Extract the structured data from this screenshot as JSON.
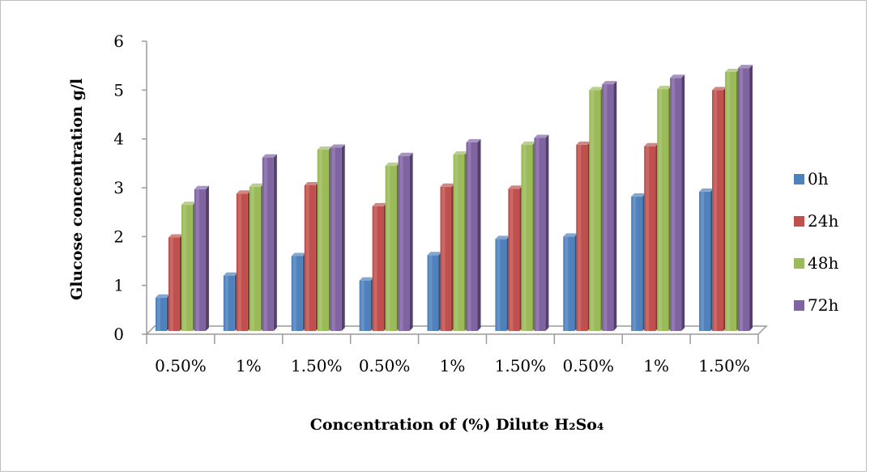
{
  "chart_data": {
    "type": "bar",
    "categories": [
      "0.50%",
      "1%",
      "1.50%",
      "0.50%",
      "1%",
      "1.50%",
      "0.50%",
      "1%",
      "1.50%"
    ],
    "series": [
      {
        "name": "0h",
        "color": "#4f81bd",
        "values": [
          0.75,
          1.2,
          1.6,
          1.1,
          1.62,
          1.95,
          2.0,
          2.82,
          2.92
        ]
      },
      {
        "name": "24h",
        "color": "#c0504d",
        "values": [
          1.98,
          2.88,
          3.05,
          2.62,
          3.02,
          2.98,
          3.88,
          3.85,
          5.0
        ]
      },
      {
        "name": "48h",
        "color": "#9bbb59",
        "values": [
          2.65,
          3.02,
          3.78,
          3.45,
          3.68,
          3.88,
          5.0,
          5.02,
          5.37
        ]
      },
      {
        "name": "72h",
        "color": "#8064a2",
        "values": [
          2.97,
          3.62,
          3.82,
          3.65,
          3.93,
          4.02,
          5.12,
          5.25,
          5.45
        ]
      }
    ],
    "y_ticks": [
      "0",
      "1",
      "2",
      "3",
      "4",
      "5",
      "6"
    ],
    "ylim": [
      0,
      6
    ],
    "ylabel": "Glucose concentration g/l",
    "xlabel": "Concentration of (%) Dilute H₂So₄",
    "legend_position": "right",
    "grid": false
  }
}
